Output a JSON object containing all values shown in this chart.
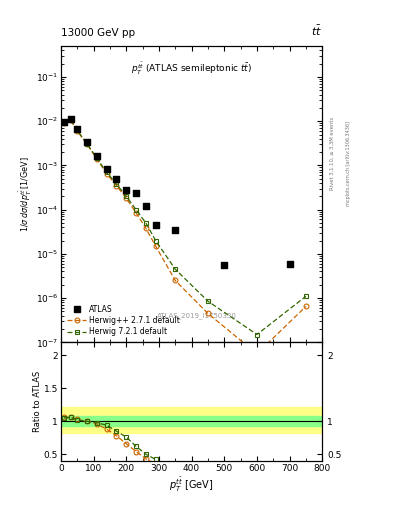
{
  "title_top_left": "13000 GeV pp",
  "title_top_right": "tt̅",
  "plot_title": "p_T^{t̅bar} (ATLAS semileptonic ttbar)",
  "watermark": "ATLAS_2019_I1750330",
  "right_label1": "Rivet 3.1.10, ≥ 3.3M events",
  "right_label2": "mcplots.cern.ch [arXiv:1306.3436]",
  "atlas_x": [
    10,
    30,
    50,
    80,
    110,
    140,
    170,
    200,
    230,
    260,
    290,
    350,
    500,
    700
  ],
  "atlas_y": [
    0.0095,
    0.011,
    0.0065,
    0.0033,
    0.0016,
    0.00085,
    0.0005,
    0.00028,
    0.00024,
    0.00012,
    4.5e-05,
    3.5e-05,
    5.5e-06,
    6e-06
  ],
  "herwig_pp_x": [
    10,
    30,
    50,
    80,
    110,
    140,
    170,
    200,
    230,
    260,
    290,
    350,
    450,
    600,
    750
  ],
  "herwig_pp_y": [
    0.0092,
    0.0105,
    0.006,
    0.003,
    0.0014,
    0.00065,
    0.00035,
    0.00018,
    8.5e-05,
    3.8e-05,
    1.5e-05,
    2.5e-06,
    4.5e-07,
    5.5e-08,
    6.5e-07
  ],
  "herwig7_x": [
    10,
    30,
    50,
    80,
    110,
    140,
    170,
    200,
    230,
    260,
    290,
    350,
    450,
    600,
    750
  ],
  "herwig7_y": [
    0.0094,
    0.0108,
    0.0062,
    0.0031,
    0.00145,
    0.0007,
    0.00038,
    0.0002,
    0.0001,
    5e-05,
    2e-05,
    4.5e-06,
    8.5e-07,
    1.5e-07,
    1.1e-06
  ],
  "ratio_yellow_y1": 0.82,
  "ratio_yellow_y2": 1.22,
  "ratio_green_y1": 0.93,
  "ratio_green_y2": 1.08,
  "ratio_herwig_pp_x": [
    10,
    30,
    50,
    80,
    110,
    140,
    170,
    200,
    230,
    260,
    290
  ],
  "ratio_herwig_pp_y": [
    1.06,
    1.06,
    1.03,
    1.0,
    0.96,
    0.88,
    0.78,
    0.66,
    0.54,
    0.43,
    0.35
  ],
  "ratio_herwig7_x": [
    10,
    30,
    50,
    80,
    110,
    140,
    170,
    200,
    230,
    260,
    290
  ],
  "ratio_herwig7_y": [
    1.05,
    1.06,
    1.02,
    1.0,
    0.98,
    0.94,
    0.85,
    0.76,
    0.62,
    0.5,
    0.42
  ],
  "herwig_pp_color": "#cc6600",
  "herwig7_color": "#336600",
  "atlas_color": "#000000",
  "band_yellow": "#ffff88",
  "band_green": "#88ff88",
  "xlim": [
    0,
    800
  ],
  "ylim_main": [
    1e-07,
    0.5
  ],
  "ylim_ratio": [
    0.4,
    2.2
  ],
  "ratio_yticks": [
    0.5,
    1.0,
    1.5,
    2.0
  ],
  "ratio_ytick_labels": [
    "0.5",
    "1",
    "1.5",
    "2"
  ]
}
